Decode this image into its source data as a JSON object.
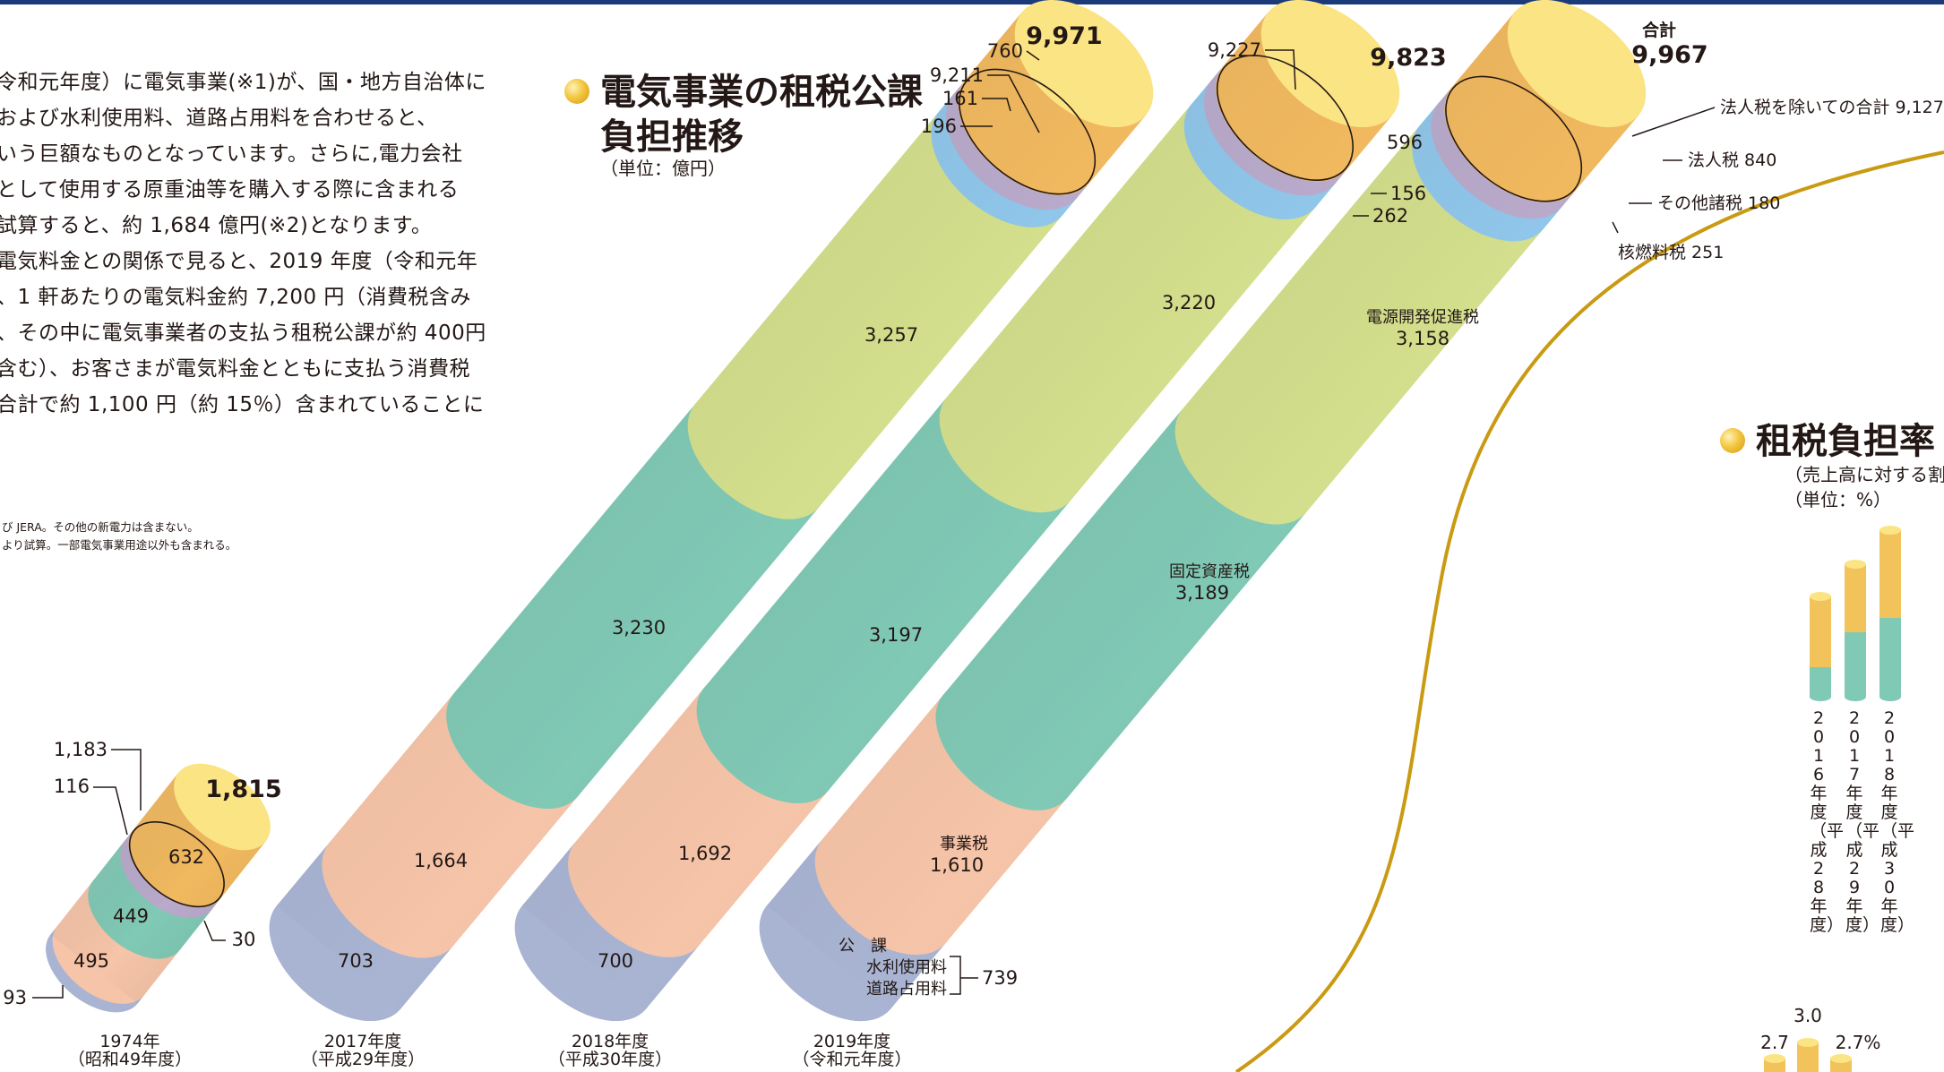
{
  "paragraph": [
    "令和元年度）に電気事業(※1)が、国・地方自治体に",
    "および水利使用料、道路占用料を合わせると、",
    "いう巨額なものとなっています。さらに,電力会社",
    "として使用する原重油等を購入する際に含まれる",
    "試算すると、約 1,684 億円(※2)となります。",
    "電気料金との関係で見ると、2019 年度（令和元年",
    "、1 軒あたりの電気料金約 7,200 円（消費税含み",
    "、その中に電気事業者の支払う租税公課が約 400円",
    "含む）、お客さまが電気料金とともに支払う消費税",
    "合計で約 1,100 円（約 15％）含まれていることに"
  ],
  "notes": [
    "び JERA。その他の新電力は含まない。",
    "より試算。一部電気事業用途以外も含まれる。"
  ],
  "heading": {
    "line1": "電気事業の租税公課",
    "line2": "負担推移",
    "unit": "（単位：億円）"
  },
  "heading2": {
    "title": "租税負担率",
    "sub": "（売上高に対する割",
    "unit": "（単位：%）"
  },
  "colors": {
    "kouka": "#a9b4d3",
    "jigyou": "#f6c4a8",
    "kotei": "#80c9b5",
    "dengen": "#d3df8c",
    "nenryo": "#8fc6ea",
    "sonota": "#b9aacb",
    "houjin": "#f1b95f",
    "top": "#fbe484",
    "curve": "#c99a12"
  },
  "chart_data": {
    "type": "bar",
    "title": "電気事業の租税公課負担推移",
    "unit": "（単位：億円）",
    "categories": [
      "1974年（昭和49年度）",
      "2017年度（平成29年度）",
      "2018年度（平成30年度）",
      "2019年度（令和元年度）"
    ],
    "category_labels": [
      [
        "1974年",
        "（昭和49年度）"
      ],
      [
        "2017年度",
        "（平成29年度）"
      ],
      [
        "2018年度",
        "（平成30年度）"
      ],
      [
        "2019年度",
        "（令和元年度）"
      ]
    ],
    "series": [
      {
        "name": "公課（水利使用料・道路占用料）",
        "values": [
          93,
          703,
          700,
          739
        ]
      },
      {
        "name": "事業税",
        "values": [
          495,
          1664,
          1692,
          1610
        ]
      },
      {
        "name": "固定資産税",
        "values": [
          449,
          3230,
          3197,
          3189
        ]
      },
      {
        "name": "電源開発促進税",
        "values": [
          null,
          3257,
          3220,
          3158
        ]
      },
      {
        "name": "核燃料税",
        "values": [
          null,
          196,
          262,
          251
        ]
      },
      {
        "name": "その他諸税",
        "values": [
          116,
          161,
          156,
          180
        ]
      },
      {
        "name": "法人税",
        "values": [
          632,
          760,
          596,
          840
        ]
      }
    ],
    "totals": [
      1815,
      9971,
      9823,
      9967
    ],
    "totals_excluding_corporate_tax": [
      1183,
      9211,
      9227,
      9127
    ],
    "extra_labels_1974": [
      "30"
    ],
    "labels": {
      "y1974": {
        "a": "1,183",
        "b": "116",
        "c": "1,815",
        "d": "632",
        "e": "449",
        "f": "30",
        "g": "495",
        "h": "93"
      },
      "y2017": {
        "a": "760",
        "b": "9,971",
        "c": "9,211",
        "d": "161",
        "e": "196",
        "f": "3,257",
        "g": "3,230",
        "h": "1,664",
        "i": "703"
      },
      "y2018": {
        "a": "9,227",
        "b": "9,823",
        "c": "596",
        "d": "156",
        "e": "262",
        "f": "3,220",
        "g": "3,197",
        "h": "1,692",
        "i": "700"
      },
      "y2019": {
        "total_title": "合計",
        "total": "9,967",
        "excl_label": "法人税を除いての合計 9,127",
        "houjin_label": "法人税 840",
        "sonota_label": "その他諸税 180",
        "nenryo_label": "核燃料税 251",
        "dengen_name": "電源開発促進税",
        "dengen_val": "3,158",
        "kotei_name": "固定資産税",
        "kotei_val": "3,189",
        "jigyou_name": "事業税",
        "jigyou_val": "1,610",
        "kouka_name": "公　課",
        "kouka_sub1": "水利使用料",
        "kouka_sub2": "道路占用料",
        "kouka_val": "739"
      }
    }
  },
  "ratio_chart": {
    "years": [
      "2016年度（平成28年度）",
      "2017年度（平成29年度）",
      "2018年度（平成30年度）"
    ],
    "bottom_values": [
      "2.7",
      "3.0",
      "2.7%"
    ]
  }
}
